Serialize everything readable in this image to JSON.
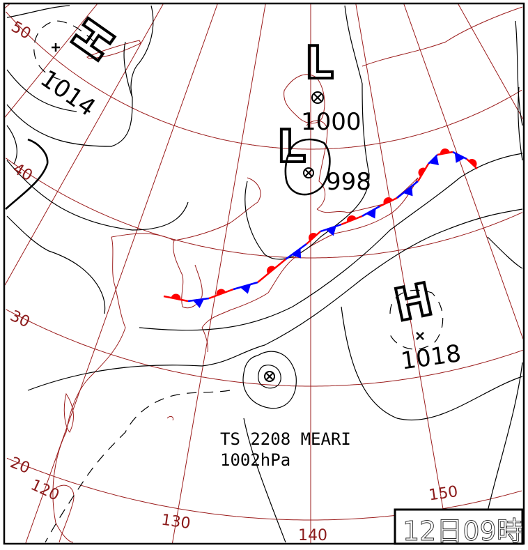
{
  "map": {
    "type": "surface weather chart",
    "datetime_label": "12日09時",
    "latitude_labels": [
      "50",
      "40",
      "30",
      "20"
    ],
    "longitude_labels": [
      "120",
      "130",
      "140",
      "150"
    ],
    "pressure_systems": [
      {
        "type": "H",
        "pressure": "1014",
        "center_marker": "plus"
      },
      {
        "type": "L",
        "pressure": "1000",
        "center_marker": "circled-x"
      },
      {
        "type": "L",
        "pressure": "998",
        "center_marker": "circled-x"
      },
      {
        "type": "H",
        "pressure": "1018",
        "center_marker": "x"
      }
    ],
    "tropical_storm": {
      "name": "TS 2208 MEARI",
      "pressure": "1002hPa",
      "center_marker": "circled-x"
    },
    "front": {
      "type": "stationary",
      "warm_color": "#ff0000",
      "cold_color": "#0000ff"
    },
    "colors": {
      "grid": "#9b1c1c",
      "coastline": "#9b1c1c",
      "isobar": "#000000"
    }
  }
}
